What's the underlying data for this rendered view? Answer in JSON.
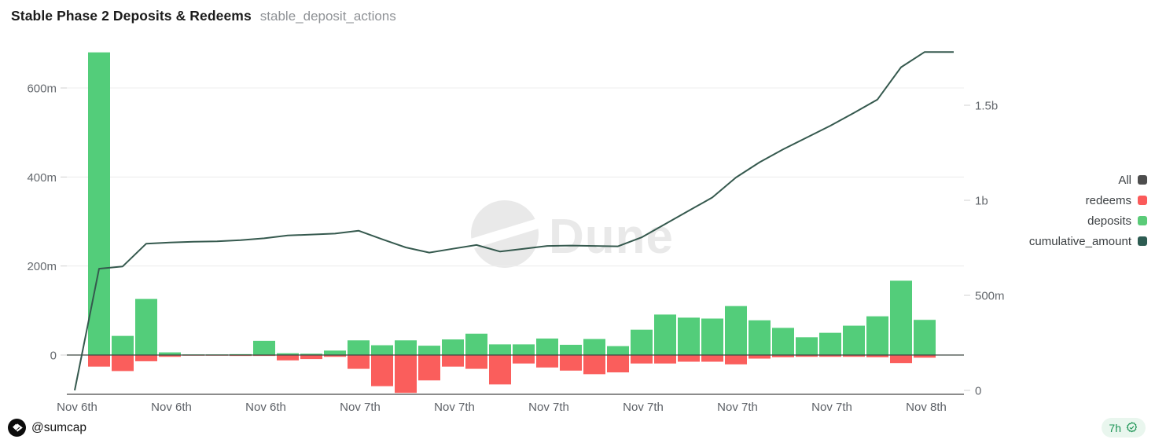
{
  "header": {
    "title": "Stable Phase 2 Deposits & Redeems",
    "query_name": "stable_deposit_actions"
  },
  "watermark_text": "Dune",
  "legend": {
    "items": [
      {
        "label": "All",
        "color": "#4d4d4d"
      },
      {
        "label": "redeems",
        "color": "#fb5a5a"
      },
      {
        "label": "deposits",
        "color": "#5acb78"
      },
      {
        "label": "cumulative_amount",
        "color": "#2d5c52"
      }
    ]
  },
  "footer": {
    "author": "@sumcap",
    "logo_icon": "dune-logo-icon",
    "last_updated": "7h",
    "updated_icon": "seal-check-icon",
    "badge_bg": "#e9f6ee",
    "badge_color": "#1d9455"
  },
  "chart_data": {
    "type": "bar+line combo",
    "unit": "USD (m = millions, b = billions)",
    "n_bars": 36,
    "x_axis": {
      "tick_labels": [
        "Nov 6th",
        "Nov 6th",
        "Nov 6th",
        "Nov 7th",
        "Nov 7th",
        "Nov 7th",
        "Nov 7th",
        "Nov 7th",
        "Nov 7th",
        "Nov 8th"
      ]
    },
    "left_axis": {
      "tick_values_m": [
        0,
        200,
        400,
        600
      ],
      "tick_labels": [
        "0",
        "200m",
        "400m",
        "600m"
      ]
    },
    "right_axis": {
      "tick_values_m": [
        0,
        500,
        1000,
        1500
      ],
      "tick_labels": [
        "0",
        "500m",
        "1b",
        "1.5b"
      ]
    },
    "series": [
      {
        "name": "deposits",
        "type": "bar",
        "axis": "left",
        "color": "#53cd7a",
        "values_m": [
          680,
          43,
          126,
          6,
          1,
          1,
          2,
          32,
          4,
          3,
          10,
          33,
          22,
          33,
          21,
          35,
          48,
          24,
          24,
          37,
          23,
          36,
          20,
          57,
          91,
          84,
          82,
          110,
          78,
          61,
          40,
          50,
          66,
          87,
          167,
          79
        ]
      },
      {
        "name": "redeems",
        "type": "bar",
        "axis": "left",
        "color": "#fa5e5c",
        "values_m": [
          -26,
          -36,
          -14,
          -4,
          -1,
          -1,
          -2,
          -2,
          -12,
          -9,
          -4,
          -31,
          -70,
          -85,
          -57,
          -26,
          -31,
          -66,
          -19,
          -28,
          -35,
          -43,
          -39,
          -19,
          -19,
          -15,
          -15,
          -21,
          -8,
          -5,
          -4,
          -4,
          -4,
          -5,
          -18,
          -6
        ]
      },
      {
        "name": "cumulative_amount",
        "type": "line",
        "axis": "right",
        "color": "#35594e",
        "start_value_m": 0,
        "values_m": [
          640,
          652,
          772,
          778,
          782,
          784,
          790,
          800,
          815,
          820,
          825,
          840,
          795,
          752,
          725,
          745,
          765,
          730,
          745,
          760,
          762,
          760,
          758,
          805,
          875,
          945,
          1015,
          1120,
          1200,
          1268,
          1330,
          1392,
          1460,
          1530,
          1700,
          1780
        ]
      }
    ],
    "grid": "horizontal light gridlines at left-axis ticks",
    "legend_position": "right"
  }
}
